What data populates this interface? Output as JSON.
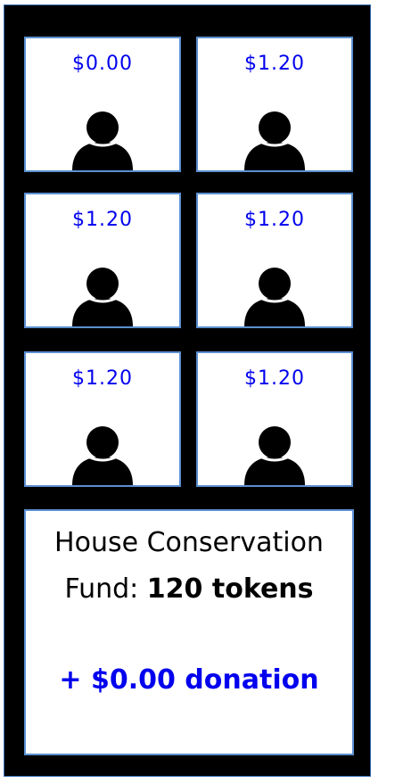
{
  "participants": [
    {
      "amount": "$0.00"
    },
    {
      "amount": "$1.20"
    },
    {
      "amount": "$1.20"
    },
    {
      "amount": "$1.20"
    },
    {
      "amount": "$1.20"
    },
    {
      "amount": "$1.20"
    }
  ],
  "fund": {
    "line1": "House Conservation",
    "label": "Fund:",
    "tokens": "120 tokens",
    "donation": "+ $0.00 donation"
  },
  "colors": {
    "amount": "#0000ee",
    "frame": "#000000",
    "tile_border": "#5b8fd0"
  },
  "icons": {
    "participant": "person-icon"
  }
}
